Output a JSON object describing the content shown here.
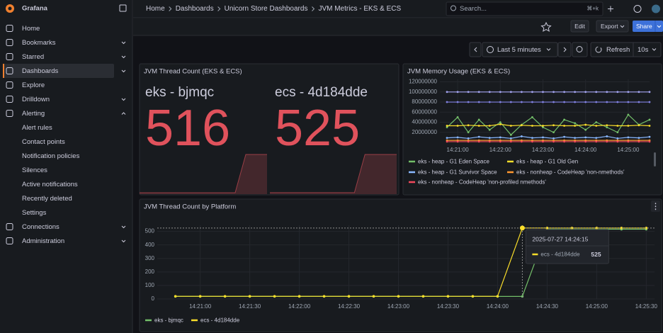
{
  "sidebar": {
    "brand": "Grafana",
    "nav": [
      {
        "label": "Home"
      },
      {
        "label": "Bookmarks",
        "expand": "down"
      },
      {
        "label": "Starred",
        "expand": "down"
      },
      {
        "label": "Dashboards",
        "expand": "down",
        "active": true
      },
      {
        "label": "Explore"
      },
      {
        "label": "Drilldown",
        "expand": "down"
      },
      {
        "label": "Alerting",
        "expand": "up",
        "children": [
          "Alert rules",
          "Contact points",
          "Notification policies",
          "Silences",
          "Active notifications",
          "Recently deleted",
          "Settings"
        ]
      },
      {
        "label": "Connections",
        "expand": "down"
      },
      {
        "label": "Administration",
        "expand": "down"
      }
    ]
  },
  "topbar": {
    "breadcrumbs": [
      "Home",
      "Dashboards",
      "Unicorn Store Dashboards",
      "JVM Metrics - EKS & ECS"
    ],
    "search": "Search...",
    "shortcut": "⌘+k"
  },
  "toolbar": {
    "edit": "Edit",
    "export": "Export",
    "share": "Share",
    "time_range": "Last 5 minutes",
    "refresh": "Refresh",
    "interval": "10s"
  },
  "panels": [
    {
      "chart_data": {
        "type": "stat",
        "title": "JVM Thread Count (EKS & ECS)",
        "color": "#e0525c",
        "series": [
          {
            "name": "eks - bjmqc",
            "value": 516,
            "sparkline": [
              19,
              19,
              19,
              19,
              19,
              19,
              19,
              19,
              19,
              19,
              516,
              516,
              516
            ]
          },
          {
            "name": "ecs - 4d184dde",
            "value": 525,
            "sparkline": [
              20,
              20,
              20,
              20,
              20,
              20,
              20,
              20,
              20,
              525,
              525,
              525,
              525
            ]
          }
        ]
      }
    },
    {
      "chart_data": {
        "type": "line",
        "title": "JVM Memory Usage (EKS & ECS)",
        "x": [
          "14:20:45",
          "14:21:00",
          "14:21:15",
          "14:21:30",
          "14:21:45",
          "14:22:00",
          "14:22:15",
          "14:22:30",
          "14:22:45",
          "14:23:00",
          "14:23:15",
          "14:23:30",
          "14:23:45",
          "14:24:00",
          "14:24:15",
          "14:24:30",
          "14:24:45",
          "14:25:00",
          "14:25:15",
          "14:25:30"
        ],
        "xlim": [
          "14:20:35",
          "14:25:30"
        ],
        "xticks": [
          "14:21:00",
          "14:22:00",
          "14:23:00",
          "14:24:00",
          "14:25:00"
        ],
        "ylim": [
          0,
          125000000
        ],
        "yticks": [
          20000000,
          40000000,
          60000000,
          80000000,
          100000000,
          120000000
        ],
        "grid": true,
        "series": [
          {
            "name": "eks - heap - G1 Eden Space",
            "color": "#73bf69",
            "values": [
              30000000,
              50000000,
              20000000,
              45000000,
              25000000,
              40000000,
              15000000,
              35000000,
              50000000,
              30000000,
              20000000,
              45000000,
              38000000,
              25000000,
              40000000,
              30000000,
              20000000,
              55000000,
              35000000,
              45000000
            ]
          },
          {
            "name": "eks - heap - G1 Old Gen",
            "color": "#fade2a",
            "values": [
              33000000,
              33000000,
              34000000,
              33000000,
              33000000,
              36000000,
              33000000,
              34000000,
              33000000,
              33000000,
              34000000,
              33000000,
              33000000,
              35000000,
              33000000,
              34000000,
              33000000,
              33000000,
              34000000,
              33000000
            ]
          },
          {
            "name": "eks - heap - G1 Survivor Space",
            "color": "#8ab8ff",
            "values": [
              9000000,
              10000000,
              8000000,
              11000000,
              9000000,
              10000000,
              8000000,
              12000000,
              9000000,
              10000000,
              8000000,
              11000000,
              9000000,
              10000000,
              9000000,
              12000000,
              8000000,
              10000000,
              9000000,
              11000000
            ]
          },
          {
            "name": "eks - nonheap - CodeHeap 'non-nmethods'",
            "color": "#ff9830",
            "values": [
              4000000,
              4000000,
              4000000,
              4000000,
              4000000,
              4000000,
              4000000,
              4000000,
              4000000,
              4000000,
              4000000,
              4000000,
              4000000,
              4000000,
              4000000,
              4000000,
              4000000,
              4000000,
              4000000,
              4000000
            ]
          },
          {
            "name": "eks - nonheap - CodeHeap 'non-profiled nmethods'",
            "color": "#f2495c",
            "values": [
              1500000,
              1500000,
              1500000,
              1500000,
              1500000,
              1500000,
              1500000,
              1500000,
              1500000,
              1500000,
              1500000,
              1500000,
              1500000,
              1500000,
              1500000,
              1500000,
              1500000,
              1500000,
              1500000,
              1500000
            ]
          },
          {
            "color": "#a3a3f0",
            "values": [
              100000000,
              100000000,
              100000000,
              100000000,
              100000000,
              100000000,
              100000000,
              100000000,
              100000000,
              100000000,
              100000000,
              100000000,
              100000000,
              100000000,
              100000000,
              100000000,
              100000000,
              100000000,
              100000000,
              100000000
            ]
          },
          {
            "color": "#8080e0",
            "values": [
              80000000,
              80000000,
              80000000,
              80000000,
              80000000,
              80000000,
              80000000,
              80000000,
              80000000,
              80000000,
              80000000,
              80000000,
              80000000,
              80000000,
              80000000,
              80000000,
              80000000,
              80000000,
              80000000,
              80000000
            ]
          }
        ]
      }
    },
    {
      "chart_data": {
        "type": "line",
        "title": "JVM Thread Count by Platform",
        "x": [
          "14:20:45",
          "14:21:00",
          "14:21:15",
          "14:21:30",
          "14:21:45",
          "14:22:00",
          "14:22:15",
          "14:22:30",
          "14:22:45",
          "14:23:00",
          "14:23:15",
          "14:23:30",
          "14:23:45",
          "14:24:00",
          "14:24:15",
          "14:24:30",
          "14:24:45",
          "14:25:00",
          "14:25:15",
          "14:25:30"
        ],
        "xlim": [
          "14:20:34",
          "14:25:35"
        ],
        "xticks": [
          "14:21:00",
          "14:21:30",
          "14:22:00",
          "14:22:30",
          "14:23:00",
          "14:23:30",
          "14:24:00",
          "14:24:30",
          "14:25:00",
          "14:25:30"
        ],
        "ylim": [
          0,
          545
        ],
        "yticks": [
          0,
          100,
          200,
          300,
          400,
          500
        ],
        "grid": true,
        "series": [
          {
            "name": "eks - bjmqc",
            "color": "#73bf69",
            "values": [
              19,
              19,
              19,
              19,
              19,
              19,
              19,
              19,
              19,
              19,
              19,
              19,
              19,
              19,
              19,
              516,
              516,
              516,
              516,
              516
            ]
          },
          {
            "name": "ecs - 4d184dde",
            "color": "#fade2a",
            "values": [
              20,
              20,
              20,
              20,
              20,
              20,
              20,
              20,
              20,
              20,
              20,
              20,
              20,
              20,
              525,
              525,
              525,
              525,
              525,
              525
            ]
          }
        ],
        "tooltip": {
          "time": "2025-07-27 14:24:15",
          "series": 1,
          "index": 14
        }
      }
    }
  ]
}
